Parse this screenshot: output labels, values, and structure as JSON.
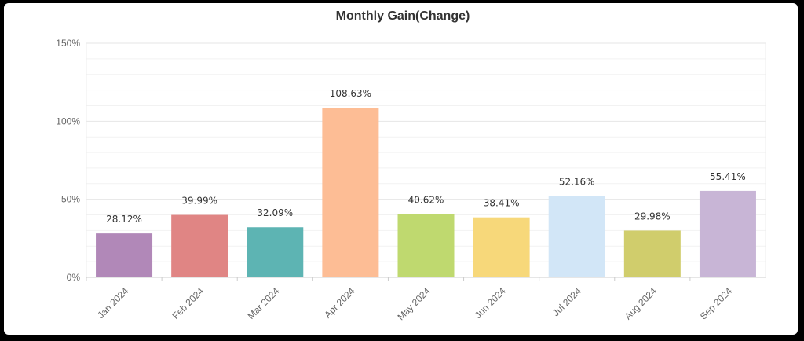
{
  "chart_data": {
    "type": "bar",
    "title": "Monthly Gain(Change)",
    "categories": [
      "Jan 2024",
      "Feb 2024",
      "Mar 2024",
      "Apr 2024",
      "May 2024",
      "Jun 2024",
      "Jul 2024",
      "Aug 2024",
      "Sep 2024"
    ],
    "values": [
      28.12,
      39.99,
      32.09,
      108.63,
      40.62,
      38.41,
      52.16,
      29.98,
      55.41
    ],
    "data_labels": [
      "28.12%",
      "39.99%",
      "32.09%",
      "108.63%",
      "40.62%",
      "38.41%",
      "52.16%",
      "29.98%",
      "55.41%"
    ],
    "colors": [
      "#b188b8",
      "#e08584",
      "#5db4b3",
      "#fdbd95",
      "#bfd96f",
      "#f7d87a",
      "#d2e6f7",
      "#d0cd6c",
      "#c8b5d6"
    ],
    "yticks": [
      0,
      50,
      100,
      150
    ],
    "ytick_labels": [
      "0%",
      "50%",
      "100%",
      "150%"
    ],
    "ylim": [
      0,
      150
    ],
    "xlabel": "",
    "ylabel": "",
    "grid": true,
    "legend": "none"
  }
}
